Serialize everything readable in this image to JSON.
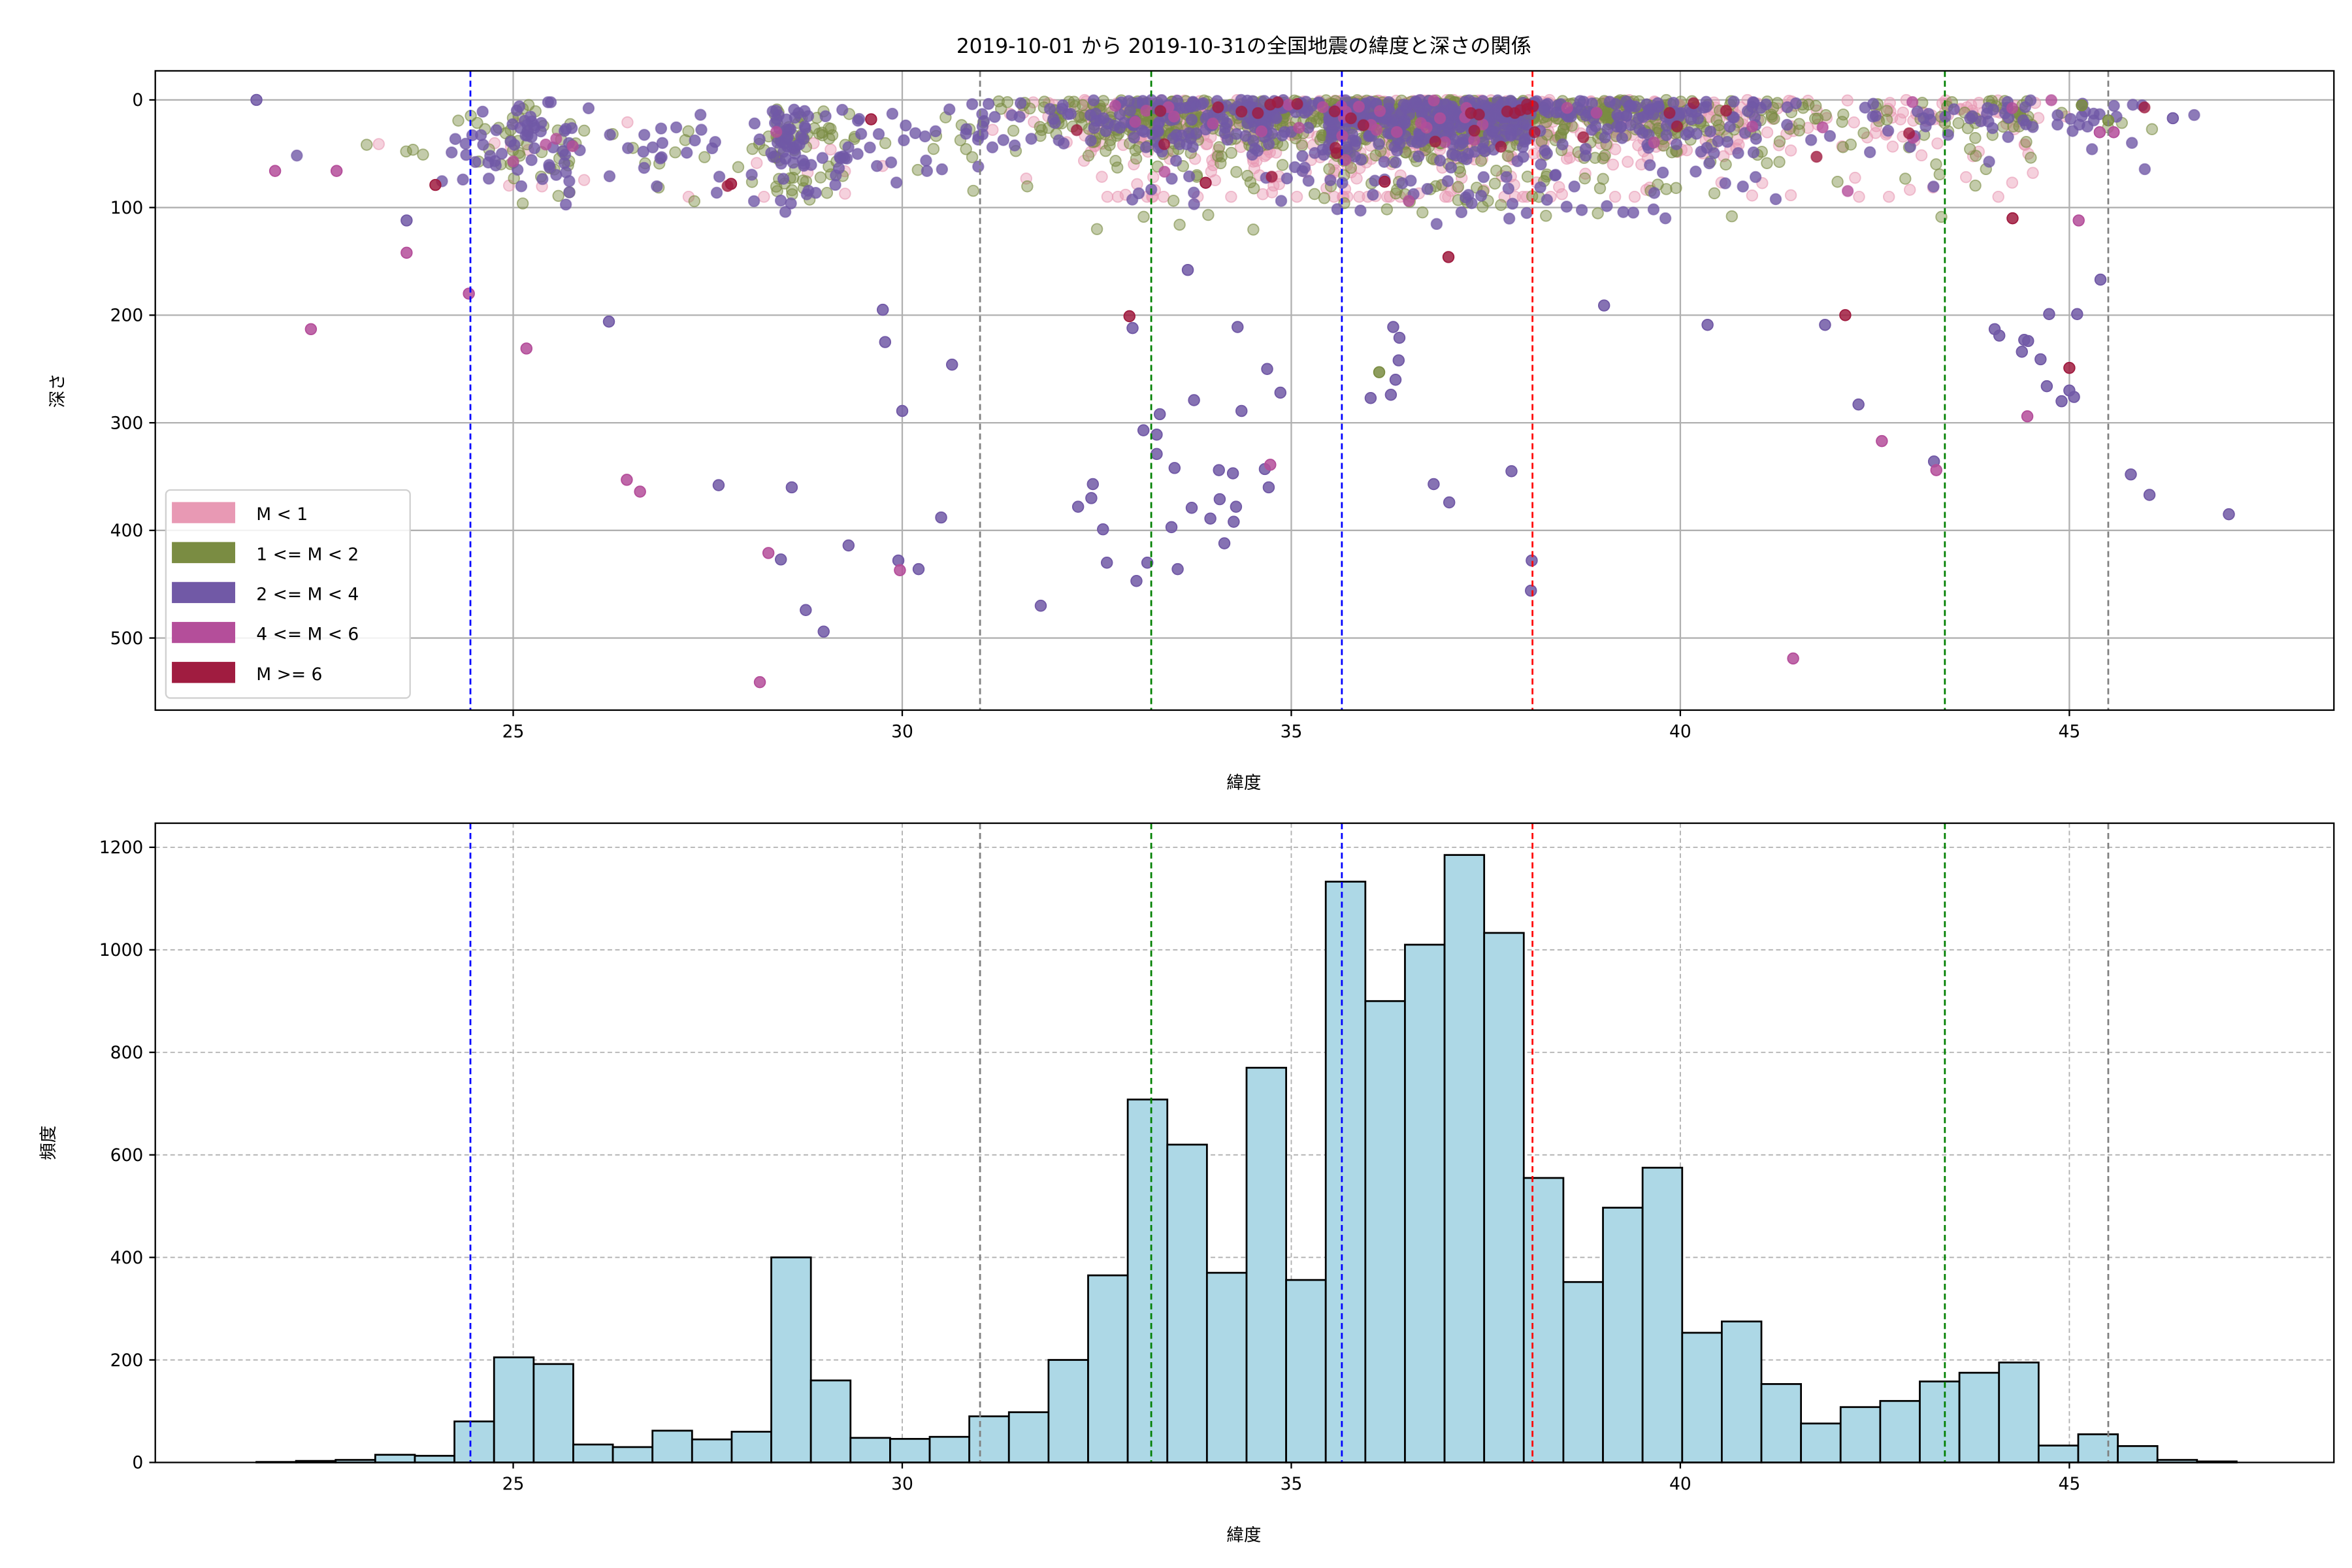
{
  "chart_data": [
    {
      "type": "scatter",
      "title": "2019-10-01 から 2019-10-31の全国地震の緯度と深さの関係",
      "xlabel": "緯度",
      "ylabel": "深さ",
      "xlim": [
        20.4,
        48.4
      ],
      "ylim": [
        567,
        -27
      ],
      "y_inverted": true,
      "xticks": [
        25,
        30,
        35,
        40,
        45
      ],
      "yticks": [
        0,
        100,
        200,
        300,
        400,
        500
      ],
      "grid": true,
      "legend_position": "bottom-left",
      "legend": [
        {
          "label": "M < 1",
          "color": "#e899b4",
          "class": 0
        },
        {
          "label": "1 <= M < 2",
          "color": "#7a8c42",
          "class": 1
        },
        {
          "label": "2 <= M < 4",
          "color": "#7159a6",
          "class": 2
        },
        {
          "label": "4 <= M < 6",
          "color": "#b44e9a",
          "class": 3
        },
        {
          "label": "M >= 6",
          "color": "#a01c40",
          "class": 4
        }
      ],
      "reference_lines": [
        {
          "x": 24.45,
          "color": "#0000ff"
        },
        {
          "x": 31.0,
          "color": "#808080"
        },
        {
          "x": 33.2,
          "color": "#008000"
        },
        {
          "x": 35.65,
          "color": "#0000ff"
        },
        {
          "x": 38.1,
          "color": "#ff0000"
        },
        {
          "x": 43.4,
          "color": "#008000"
        },
        {
          "x": 45.5,
          "color": "#808080"
        }
      ],
      "notable_points": [
        [
          21.7,
          0,
          2
        ],
        [
          22.4,
          213,
          3
        ],
        [
          21.94,
          66,
          3
        ],
        [
          22.73,
          66,
          3
        ],
        [
          23.63,
          112,
          2
        ],
        [
          23.63,
          142,
          3
        ],
        [
          24.43,
          180,
          3
        ],
        [
          25.17,
          231,
          3
        ],
        [
          26.23,
          206,
          2
        ],
        [
          26.46,
          353,
          3
        ],
        [
          26.63,
          364,
          3
        ],
        [
          27.64,
          358,
          2
        ],
        [
          28.58,
          360,
          2
        ],
        [
          28.28,
          421,
          3
        ],
        [
          28.44,
          427,
          2
        ],
        [
          28.76,
          474,
          2
        ],
        [
          28.99,
          494,
          2
        ],
        [
          28.17,
          541,
          3
        ],
        [
          29.31,
          414,
          2
        ],
        [
          29.95,
          428,
          2
        ],
        [
          29.97,
          437,
          3
        ],
        [
          30.21,
          436,
          2
        ],
        [
          30.5,
          388,
          2
        ],
        [
          30.64,
          246,
          2
        ],
        [
          30.0,
          289,
          2
        ],
        [
          29.75,
          195,
          2
        ],
        [
          29.78,
          225,
          2
        ],
        [
          31.78,
          470,
          2
        ],
        [
          32.26,
          378,
          2
        ],
        [
          32.43,
          370,
          2
        ],
        [
          32.45,
          357,
          2
        ],
        [
          32.58,
          399,
          2
        ],
        [
          32.63,
          430,
          2
        ],
        [
          33.01,
          447,
          2
        ],
        [
          33.15,
          430,
          2
        ],
        [
          32.92,
          201,
          4
        ],
        [
          32.96,
          212,
          2
        ],
        [
          33.1,
          307,
          2
        ],
        [
          33.27,
          311,
          2
        ],
        [
          33.31,
          292,
          2
        ],
        [
          33.27,
          329,
          2
        ],
        [
          33.5,
          342,
          2
        ],
        [
          33.46,
          397,
          2
        ],
        [
          33.54,
          436,
          2
        ],
        [
          33.72,
          379,
          2
        ],
        [
          33.96,
          389,
          2
        ],
        [
          34.07,
          344,
          2
        ],
        [
          34.25,
          347,
          2
        ],
        [
          34.08,
          371,
          2
        ],
        [
          34.29,
          378,
          2
        ],
        [
          34.26,
          392,
          2
        ],
        [
          34.14,
          412,
          2
        ],
        [
          34.66,
          343,
          2
        ],
        [
          34.73,
          339,
          3
        ],
        [
          34.71,
          360,
          2
        ],
        [
          33.75,
          279,
          2
        ],
        [
          34.36,
          289,
          2
        ],
        [
          34.86,
          272,
          2
        ],
        [
          34.69,
          250,
          2
        ],
        [
          34.31,
          211,
          2
        ],
        [
          33.67,
          158,
          2
        ],
        [
          36.02,
          277,
          2
        ],
        [
          36.28,
          274,
          2
        ],
        [
          36.34,
          260,
          2
        ],
        [
          36.38,
          242,
          2
        ],
        [
          36.39,
          221,
          2
        ],
        [
          36.31,
          211,
          2
        ],
        [
          36.13,
          253,
          1
        ],
        [
          36.83,
          357,
          2
        ],
        [
          37.03,
          374,
          2
        ],
        [
          37.83,
          345,
          2
        ],
        [
          38.09,
          428,
          2
        ],
        [
          38.08,
          456,
          2
        ],
        [
          37.02,
          146,
          4
        ],
        [
          40.35,
          209,
          2
        ],
        [
          39.02,
          191,
          2
        ],
        [
          41.86,
          209,
          2
        ],
        [
          42.12,
          200,
          4
        ],
        [
          42.29,
          283,
          2
        ],
        [
          42.59,
          317,
          3
        ],
        [
          41.45,
          519,
          3
        ],
        [
          43.26,
          336,
          2
        ],
        [
          43.29,
          344,
          3
        ],
        [
          44.04,
          213,
          2
        ],
        [
          44.1,
          219,
          2
        ],
        [
          44.42,
          223,
          2
        ],
        [
          44.47,
          224,
          2
        ],
        [
          44.39,
          234,
          2
        ],
        [
          44.63,
          241,
          2
        ],
        [
          45.0,
          249,
          4
        ],
        [
          44.71,
          266,
          2
        ],
        [
          45.0,
          270,
          2
        ],
        [
          45.06,
          276,
          2
        ],
        [
          44.9,
          280,
          2
        ],
        [
          44.46,
          294,
          3
        ],
        [
          44.74,
          199,
          2
        ],
        [
          45.1,
          199,
          2
        ],
        [
          45.4,
          167,
          2
        ],
        [
          45.79,
          348,
          2
        ],
        [
          46.03,
          367,
          2
        ],
        [
          47.05,
          385,
          2
        ],
        [
          46.33,
          17,
          2
        ],
        [
          45.39,
          30,
          3
        ],
        [
          45.57,
          30,
          3
        ],
        [
          45.12,
          112,
          3
        ],
        [
          44.27,
          110,
          4
        ],
        [
          45.16,
          5,
          1
        ],
        [
          45.5,
          19,
          1
        ],
        [
          24.0,
          79,
          4
        ],
        [
          27.8,
          78,
          4
        ],
        [
          33.9,
          77,
          4
        ],
        [
          36.2,
          76,
          4
        ],
        [
          29.6,
          18,
          4
        ]
      ]
    },
    {
      "type": "bar",
      "subtype": "histogram",
      "xlabel": "緯度",
      "ylabel": "頻度",
      "xlim": [
        20.4,
        48.4
      ],
      "ylim": [
        0,
        1247
      ],
      "xticks": [
        25,
        30,
        35,
        40,
        45
      ],
      "yticks": [
        0,
        200,
        400,
        600,
        800,
        1000,
        1200
      ],
      "grid": true,
      "bar_color": "#add8e6",
      "bin_start": 21.7,
      "bin_width": 0.509,
      "values": [
        1,
        3,
        5,
        15,
        13,
        80,
        205,
        192,
        35,
        30,
        62,
        45,
        60,
        400,
        160,
        48,
        46,
        50,
        90,
        98,
        200,
        365,
        708,
        620,
        370,
        770,
        356,
        1133,
        900,
        1010,
        1185,
        1033,
        555,
        352,
        497,
        575,
        253,
        275,
        153,
        76,
        108,
        120,
        158,
        175,
        195,
        33,
        55,
        32,
        5,
        2
      ],
      "reference_lines": [
        {
          "x": 24.45,
          "color": "#0000ff"
        },
        {
          "x": 31.0,
          "color": "#808080"
        },
        {
          "x": 33.2,
          "color": "#008000"
        },
        {
          "x": 35.65,
          "color": "#0000ff"
        },
        {
          "x": 38.1,
          "color": "#ff0000"
        },
        {
          "x": 43.4,
          "color": "#008000"
        },
        {
          "x": 45.5,
          "color": "#808080"
        }
      ]
    }
  ]
}
